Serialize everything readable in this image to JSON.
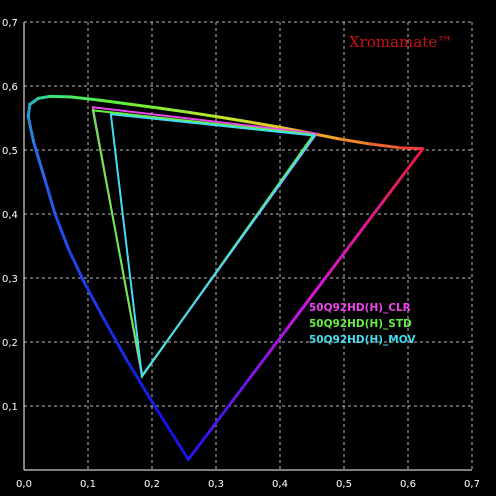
{
  "chart_data": {
    "type": "scatter",
    "title": "",
    "xlabel": "",
    "ylabel": "",
    "xlim": [
      0,
      0.7
    ],
    "ylim": [
      0,
      0.7
    ],
    "x_ticks": [
      "0,0",
      "0,1",
      "0,2",
      "0,3",
      "0,4",
      "0,5",
      "0,6",
      "0,7"
    ],
    "y_ticks": [
      "0,1",
      "0,2",
      "0,3",
      "0,4",
      "0,5",
      "0,6",
      "0,7"
    ],
    "grid": "dashed",
    "brand": {
      "label": "Xromamate™",
      "color": "#cc1111"
    },
    "spectral_locus": [
      [
        0.2568,
        0.0165
      ],
      [
        0.2053,
        0.0981
      ],
      [
        0.1607,
        0.1716
      ],
      [
        0.125,
        0.2357
      ],
      [
        0.0951,
        0.2911
      ],
      [
        0.0697,
        0.3448
      ],
      [
        0.0488,
        0.399
      ],
      [
        0.0325,
        0.4545
      ],
      [
        0.0149,
        0.513
      ],
      [
        0.0066,
        0.5525
      ],
      [
        0.0092,
        0.5713
      ],
      [
        0.0222,
        0.5807
      ],
      [
        0.0406,
        0.5838
      ],
      [
        0.0723,
        0.583
      ],
      [
        0.1176,
        0.578
      ],
      [
        0.1645,
        0.5717
      ],
      [
        0.2115,
        0.5655
      ],
      [
        0.2586,
        0.5587
      ],
      [
        0.3055,
        0.5513
      ],
      [
        0.3523,
        0.5437
      ],
      [
        0.3994,
        0.5356
      ],
      [
        0.4462,
        0.5266
      ],
      [
        0.4932,
        0.5172
      ],
      [
        0.5401,
        0.5095
      ],
      [
        0.587,
        0.5036
      ],
      [
        0.6233,
        0.502
      ]
    ],
    "series": [
      {
        "name": "50Q92HD(H)_CLR",
        "color": "#ee44ee",
        "points": [
          [
            0.1076,
            0.5668
          ],
          [
            0.4573,
            0.5256
          ],
          [
            0.1842,
            0.1469
          ]
        ]
      },
      {
        "name": "50Q92HD(H)_STD",
        "color": "#66ee44",
        "points": [
          [
            0.1076,
            0.562
          ],
          [
            0.4526,
            0.524
          ],
          [
            0.185,
            0.1469
          ]
        ]
      },
      {
        "name": "50Q92HD(H)_MOV",
        "color": "#44ddee",
        "points": [
          [
            0.1357,
            0.556
          ],
          [
            0.4541,
            0.5224
          ],
          [
            0.1842,
            0.1469
          ]
        ]
      }
    ]
  }
}
